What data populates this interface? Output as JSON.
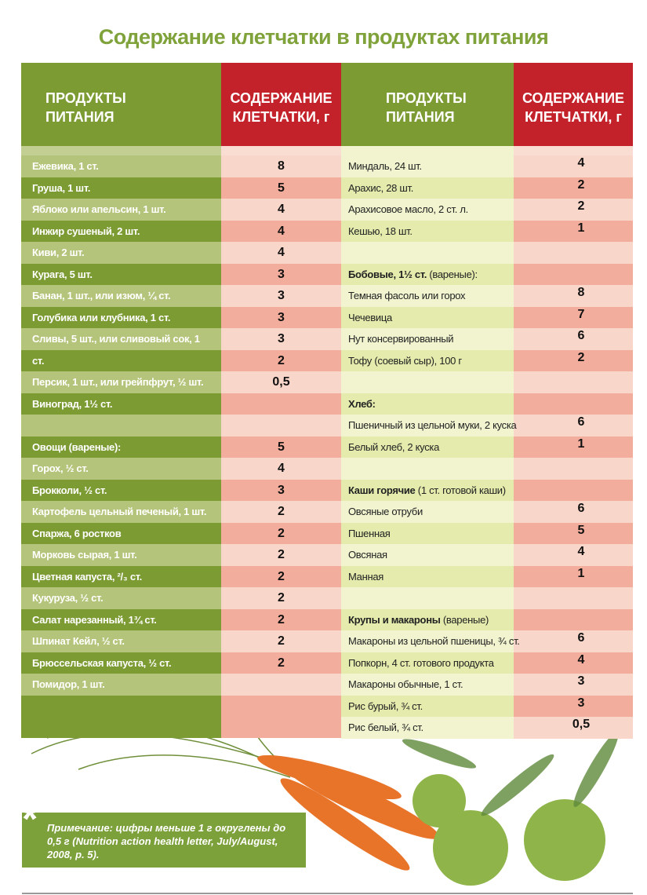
{
  "title": "Содержание клетчатки в продуктах питания",
  "headers": {
    "product": "ПРОДУКТЫ\nПИТАНИЯ",
    "fiber": "СОДЕРЖАНИЕ\nКЛЕТЧАТКИ, г"
  },
  "left_rows": [
    {
      "label": "Ежевика, 1 ст.",
      "value": 8
    },
    {
      "label": "Груша, 1 шт.",
      "value": 5
    },
    {
      "label": "Яблоко или апельсин, 1 шт.",
      "value": 4
    },
    {
      "label": "Инжир сушеный, 2 шт.",
      "value": 4
    },
    {
      "label": "Киви, 2 шт.",
      "value": 4
    },
    {
      "label": "Курага, 5 шт.",
      "value": 3
    },
    {
      "label": "Банан, 1 шт., или изюм, ¼ ст.",
      "value": 3
    },
    {
      "label": "Голубика или клубника, 1 ст.",
      "value": 3
    },
    {
      "label": "Сливы, 5 шт., или сливовый сок, 1",
      "value": 3
    },
    {
      "label": "ст.",
      "value": 2
    },
    {
      "label": "Персик, 1 шт., или грейпфрут, ½ шт.",
      "value": "0,5"
    },
    {
      "label": "Виноград, 1½ ст."
    },
    {},
    {
      "label": "Овощи (вареные):",
      "value": 5
    },
    {
      "label": "Горох, ½ ст.",
      "value": 4
    },
    {
      "label": "Брокколи, ½ ст.",
      "value": 3
    },
    {
      "label": "Картофель цельный печеный, 1 шт.",
      "value": 2
    },
    {
      "label": "Спаржа, 6 ростков",
      "value": 2
    },
    {
      "label": "Морковь сырая, 1 шт.",
      "value": 2
    },
    {
      "label": "Цветная капуста, ²/₃ ст.",
      "value": 2
    },
    {
      "label": "Кукуруза, ½ ст.",
      "value": 2
    },
    {
      "label": "Салат нарезанный, 1¾ ст.",
      "value": 2
    },
    {
      "label": "Шпинат Кейл, ½ ст.",
      "value": 2
    },
    {
      "label": "Брюссельская капуста, ½ ст.",
      "value": 2
    },
    {
      "label": "Помидор, 1 шт."
    }
  ],
  "right_rows": [
    {
      "label": "Миндаль, 24 шт.",
      "value": 4
    },
    {
      "label": "Арахис, 28 шт.",
      "value": 2
    },
    {
      "label": "Арахисовое масло, 2 ст. л.",
      "value": 2
    },
    {
      "label": "Кешью, 18 шт.",
      "value": 1
    },
    {},
    {
      "heading": "Бобовые, 1½ ст.",
      "note": "(вареные):"
    },
    {
      "label": "Темная фасоль или горох",
      "value": 8
    },
    {
      "label": "Чечевица",
      "value": 7
    },
    {
      "label": "Нут консервированный",
      "value": 6
    },
    {
      "label": "Тофу (соевый сыр), 100 г",
      "value": 2
    },
    {},
    {
      "heading": "Хлеб:"
    },
    {
      "label": "Пшеничный из цельной муки, 2 куска",
      "value": 6
    },
    {
      "label": "Белый хлеб, 2 куска",
      "value": 1
    },
    {},
    {
      "heading": "Каши горячие",
      "note": "(1 ст. готовой каши)"
    },
    {
      "label": "Овсяные отруби",
      "value": 6
    },
    {
      "label": "Пшенная",
      "value": 5
    },
    {
      "label": "Овсяная",
      "value": 4
    },
    {
      "label": "Манная",
      "value": 1
    },
    {},
    {
      "heading": "Крупы и макароны",
      "note": "(вареные)"
    },
    {
      "label": "Макароны из цельной пшеницы, ¾ ст.",
      "value": 6
    },
    {
      "label": "Попкорн, 4 ст. готового продукта",
      "value": 4
    },
    {
      "label": "Макароны обычные, 1 ст.",
      "value": 3
    },
    {
      "label": "Рис бурый, ¾ ст.",
      "value": 3
    },
    {
      "label": "Рис белый, ¾ ст.",
      "value": "0,5"
    }
  ],
  "footnote": {
    "mark": "*",
    "text": "Примечание: цифры меньше 1 г округлены до 0,5 г (Nutrition action health letter, July/August, 2008, p. 5)."
  }
}
